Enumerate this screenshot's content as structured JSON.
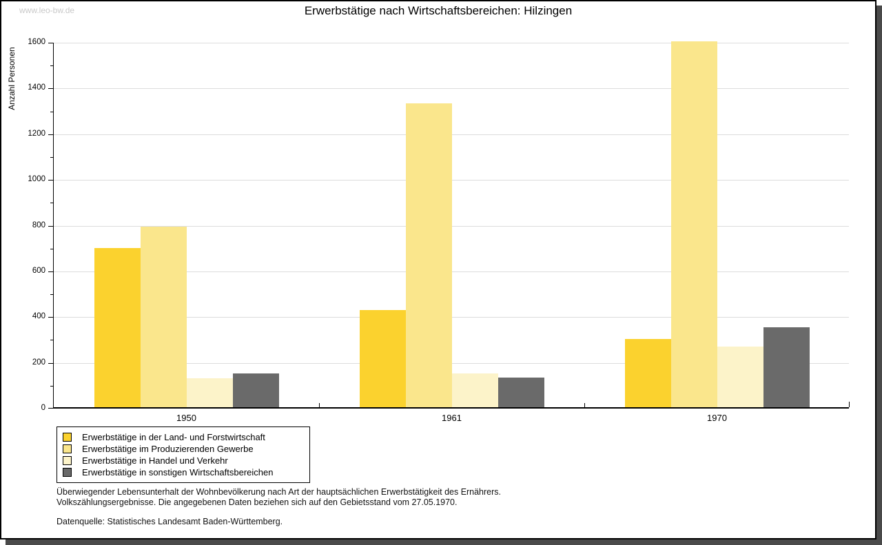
{
  "watermark": "www.leo-bw.de",
  "chart_data": {
    "type": "bar",
    "title": "Erwerbstätige nach Wirtschaftsbereichen: Hilzingen",
    "xlabel": "",
    "ylabel": "Anzahl Personen",
    "categories": [
      "1950",
      "1961",
      "1970"
    ],
    "series": [
      {
        "name": "Erwerbstätige in der Land- und Forstwirtschaft",
        "color": "#FBD22E",
        "values": [
          695,
          425,
          297
        ]
      },
      {
        "name": "Erwerbstätige im Produzierenden Gewerbe",
        "color": "#FAE68C",
        "values": [
          790,
          1330,
          1600
        ]
      },
      {
        "name": "Erwerbstätige in Handel und Verkehr",
        "color": "#FCF3C9",
        "values": [
          128,
          147,
          266
        ]
      },
      {
        "name": "Erwerbstätige in sonstigen Wirtschaftsbereichen",
        "color": "#6A6A6A",
        "values": [
          148,
          130,
          351
        ]
      }
    ],
    "ylim": [
      0,
      1600
    ],
    "ytick_step": 200,
    "yminor_step": 100,
    "grid": true,
    "legend_position": "bottom-left"
  },
  "footnotes": {
    "line1": "Überwiegender Lebensunterhalt der Wohnbevölkerung nach Art der hauptsächlichen Erwerbstätigkeit des Ernährers.",
    "line2": "Volkszählungsergebnisse. Die angegebenen Daten beziehen sich auf den Gebietsstand vom 27.05.1970.",
    "source": "Datenquelle: Statistisches Landesamt Baden-Württemberg."
  },
  "colors": {
    "gridline": "#dcdcdc",
    "axis": "#000000",
    "shadow": "#4a4a4a",
    "watermark": "#c9c9c9",
    "background": "#ffffff"
  }
}
